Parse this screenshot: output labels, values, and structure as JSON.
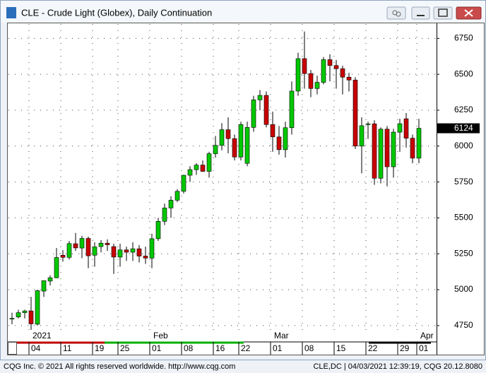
{
  "window_title": "CLE - Crude Light (Globex), Daily Continuation",
  "footer": {
    "left": "CQG Inc. © 2021 All rights reserved worldwide. http://www.cqg.com",
    "right": "CLE,DC | 04/03/2021 12:39:19, CQG 20.12.8080"
  },
  "chart_data": {
    "type": "candlestick",
    "categories": [
      null,
      null,
      null,
      "04",
      null,
      null,
      null,
      null,
      "11",
      null,
      null,
      null,
      null,
      "19",
      null,
      null,
      null,
      "25",
      null,
      null,
      null,
      null,
      "01",
      null,
      null,
      null,
      null,
      "08",
      null,
      null,
      null,
      null,
      "16",
      null,
      null,
      null,
      "22",
      null,
      null,
      null,
      null,
      "01",
      null,
      null,
      null,
      null,
      "08",
      null,
      null,
      null,
      null,
      "15",
      null,
      null,
      null,
      null,
      "22",
      null,
      null,
      null,
      null,
      "29",
      null,
      null,
      "01"
    ],
    "months": [
      null,
      null,
      null,
      "2021",
      null,
      null,
      null,
      null,
      null,
      null,
      null,
      null,
      null,
      null,
      null,
      null,
      null,
      null,
      null,
      null,
      null,
      null,
      "Feb",
      null,
      null,
      null,
      null,
      null,
      null,
      null,
      null,
      null,
      null,
      null,
      null,
      null,
      null,
      null,
      null,
      null,
      null,
      "Mar",
      null,
      null,
      null,
      null,
      null,
      null,
      null,
      null,
      null,
      null,
      null,
      null,
      null,
      null,
      null,
      null,
      null,
      null,
      null,
      null,
      null,
      null,
      "Apr"
    ],
    "open": [
      4800,
      4810,
      4840,
      4852,
      4760,
      4990,
      5060,
      5083,
      5240,
      5225,
      5320,
      5290,
      5357,
      5240,
      5300,
      5324,
      5300,
      5227,
      5277,
      5261,
      5285,
      5234,
      5220,
      5355,
      5476,
      5569,
      5623,
      5685,
      5797,
      5836,
      5868,
      5824,
      5947,
      6005,
      6114,
      6052,
      5924,
      5880,
      6130,
      6322,
      6353,
      6150,
      6064,
      5975,
      6128,
      6383,
      6609,
      6505,
      6401,
      6444,
      6602,
      6561,
      6539,
      6480,
      6460,
      6000,
      6150,
      6155,
      5776,
      6118,
      5856,
      6097,
      6190,
      6055,
      5916
    ],
    "high": [
      4840,
      4860,
      4860,
      4950,
      5000,
      5060,
      5100,
      5290,
      5275,
      5340,
      5395,
      5375,
      5370,
      5330,
      5345,
      5350,
      5320,
      5320,
      5300,
      5330,
      5310,
      5300,
      5390,
      5500,
      5600,
      5650,
      5700,
      5800,
      5860,
      5880,
      5900,
      5960,
      6070,
      6160,
      6200,
      6080,
      6170,
      6170,
      6350,
      6390,
      6380,
      6240,
      6140,
      6170,
      6450,
      6650,
      6798,
      6530,
      6490,
      6620,
      6640,
      6600,
      6560,
      6510,
      6480,
      6200,
      6170,
      6180,
      6130,
      6140,
      6120,
      6190,
      6230,
      6080,
      6190
    ],
    "low": [
      4760,
      4800,
      4800,
      4720,
      4750,
      4950,
      5030,
      5080,
      5195,
      5210,
      5270,
      5220,
      5150,
      5160,
      5260,
      5270,
      5110,
      5160,
      5200,
      5200,
      5190,
      5180,
      5150,
      5340,
      5450,
      5500,
      5610,
      5670,
      5750,
      5800,
      5820,
      5780,
      5920,
      5970,
      5950,
      5900,
      5900,
      5860,
      6100,
      6250,
      6130,
      5960,
      5940,
      5920,
      6080,
      6350,
      6400,
      6340,
      6360,
      6430,
      6450,
      6400,
      6360,
      6380,
      5980,
      5810,
      6050,
      5730,
      5740,
      5720,
      5780,
      5960,
      5990,
      5880,
      5880
    ],
    "close": [
      4800,
      4840,
      4852,
      4762,
      4993,
      5063,
      5083,
      5224,
      5225,
      5321,
      5291,
      5357,
      5236,
      5298,
      5324,
      5313,
      5227,
      5277,
      5261,
      5285,
      5234,
      5220,
      5355,
      5476,
      5569,
      5623,
      5685,
      5797,
      5836,
      5868,
      5824,
      5947,
      6005,
      6114,
      6052,
      5924,
      6150,
      6130,
      6322,
      6353,
      6150,
      6064,
      5975,
      6128,
      6383,
      6609,
      6505,
      6401,
      6444,
      6602,
      6561,
      6539,
      6480,
      6460,
      6000,
      6142,
      6155,
      5776,
      6118,
      5856,
      6097,
      6156,
      6055,
      5916,
      6124
    ],
    "up_color": "#00c800",
    "down_color": "#c80000",
    "ylim": [
      4715,
      6850
    ],
    "yticks": [
      4750,
      5000,
      5250,
      5500,
      5750,
      6000,
      6250,
      6500,
      6750
    ],
    "grid": true,
    "last_price": 6124
  }
}
